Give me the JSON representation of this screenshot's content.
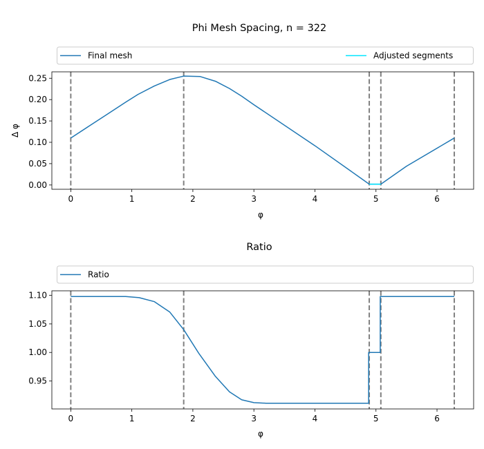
{
  "chart_data": [
    {
      "type": "line",
      "title": "Phi Mesh Spacing, n = 322",
      "xlabel": "φ",
      "ylabel": "Δ φ",
      "xlim": [
        -0.31,
        6.6
      ],
      "ylim": [
        -0.01,
        0.265
      ],
      "xticks": [
        "0",
        "1",
        "2",
        "3",
        "4",
        "5",
        "6"
      ],
      "yticks": [
        "0.00",
        "0.05",
        "0.10",
        "0.15",
        "0.20",
        "0.25"
      ],
      "legend": [
        "Final mesh",
        "Adjusted segments"
      ],
      "legend_placement": "top (above plot, expanded)",
      "vlines": [
        0,
        1.85,
        4.89,
        5.08,
        6.283
      ],
      "series": [
        {
          "name": "Final mesh",
          "color": "#1f77b4",
          "x": [
            0,
            0.3,
            0.6,
            0.9,
            1.1,
            1.37,
            1.62,
            1.85,
            2.12,
            2.37,
            2.6,
            2.8,
            3.0,
            4.0,
            4.89,
            5.08,
            5.5,
            6.283
          ],
          "y": [
            0.11,
            0.138,
            0.166,
            0.194,
            0.212,
            0.232,
            0.247,
            0.255,
            0.254,
            0.243,
            0.226,
            0.208,
            0.188,
            0.092,
            0.002,
            0.002,
            0.044,
            0.11
          ]
        },
        {
          "name": "Adjusted segments",
          "color": "#00e5ff",
          "x": [
            4.89,
            5.08
          ],
          "y": [
            0.002,
            0.002
          ]
        }
      ]
    },
    {
      "type": "line",
      "title": "Ratio",
      "xlabel": "φ",
      "ylabel": "",
      "xlim": [
        -0.31,
        6.6
      ],
      "ylim": [
        0.901,
        1.108
      ],
      "xticks": [
        "0",
        "1",
        "2",
        "3",
        "4",
        "5",
        "6"
      ],
      "yticks": [
        "0.95",
        "1.00",
        "1.05",
        "1.10"
      ],
      "legend": [
        "Ratio"
      ],
      "legend_placement": "top (above plot, expanded)",
      "vlines": [
        0,
        1.85,
        4.89,
        5.08,
        6.283
      ],
      "series": [
        {
          "name": "Ratio",
          "color": "#1f77b4",
          "x": [
            0,
            0.9,
            1.12,
            1.37,
            1.62,
            1.85,
            2.1,
            2.37,
            2.6,
            2.8,
            3.0,
            3.2,
            4.88,
            4.88,
            5.07,
            5.07,
            6.283
          ],
          "y": [
            1.098,
            1.098,
            1.096,
            1.089,
            1.071,
            1.04,
            0.998,
            0.958,
            0.931,
            0.917,
            0.912,
            0.911,
            0.911,
            1.0,
            1.0,
            1.098,
            1.098
          ]
        }
      ]
    }
  ]
}
